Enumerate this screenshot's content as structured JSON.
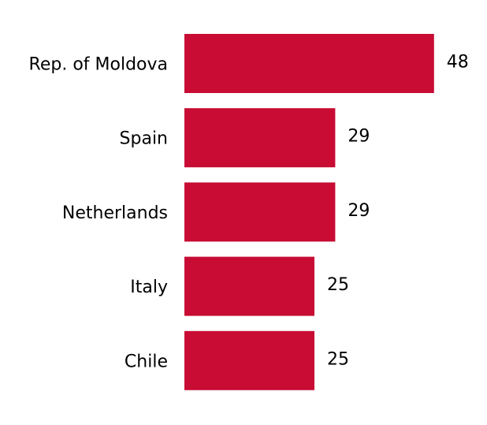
{
  "chart_data": {
    "type": "bar",
    "orientation": "horizontal",
    "categories": [
      "Rep. of Moldova",
      "Spain",
      "Netherlands",
      "Italy",
      "Chile"
    ],
    "values": [
      48,
      29,
      29,
      25,
      25
    ],
    "color": "#c80c34",
    "grid": false
  }
}
